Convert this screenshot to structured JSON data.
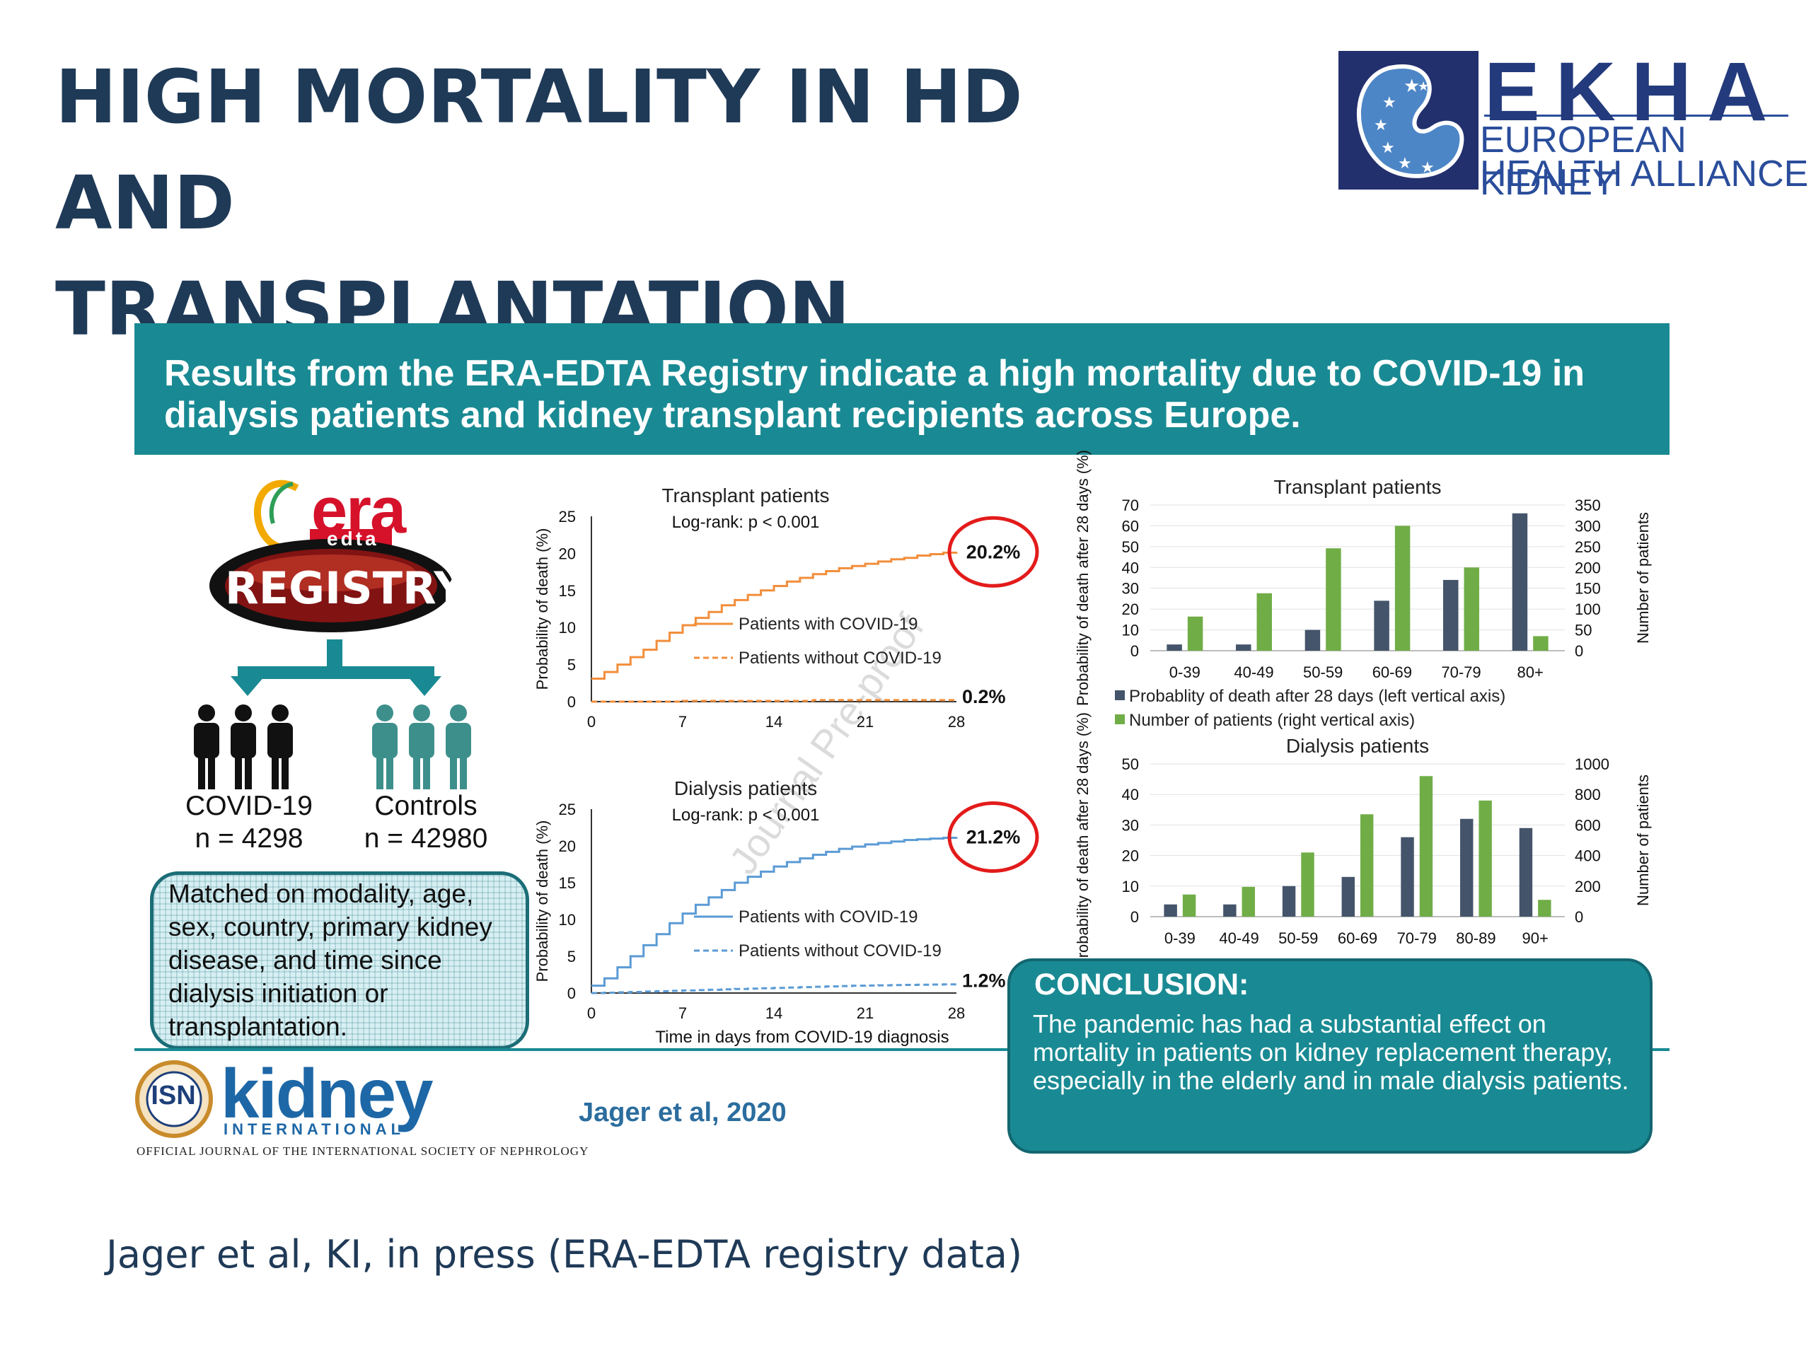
{
  "slide": {
    "title_line1": "HIGH MORTALITY IN HD AND",
    "title_line2": "TRANSPLANTATION",
    "footer": "Jager et al, KI, in press (ERA-EDTA registry data)"
  },
  "ekha_logo": {
    "word": "EKHA",
    "line1": "EUROPEAN KIDNEY",
    "line2": "HEALTH ALLIANCE"
  },
  "banner": {
    "text": "Results from the ERA-EDTA Registry indicate a high mortality due to COVID-19 in dialysis patients and kidney transplant recipients across Europe."
  },
  "registry": {
    "era": "era",
    "edta": "edta",
    "registry": "REGISTRY",
    "covid_label": "COVID-19",
    "covid_n": "n = 4298",
    "controls_label": "Controls",
    "controls_n": "n = 42980",
    "matched_text": "Matched on modality, age, sex, country, primary kidney disease, and time since dialysis initiation or transplantation."
  },
  "conclusion": {
    "heading": "CONCLUSION:",
    "text": "The pandemic has had a substantial effect on mortality in patients on kidney replacement therapy, especially in the elderly and in male dialysis patients."
  },
  "journal": {
    "isn": "ISN",
    "kidney": "kidney",
    "international": "INTERNATIONAL",
    "official": "OFFICIAL JOURNAL OF THE INTERNATIONAL SOCIETY OF NEPHROLOGY",
    "reference": "Jager et al, 2020"
  },
  "watermark": "Journal Pre-proof",
  "colors": {
    "title": "#1f3a57",
    "teal": "#198a93",
    "ekha_blue": "#233a7c",
    "covid_transplant": "#f28e3b",
    "covid_dialysis": "#5b9bd5",
    "bar_probability": "#44546a",
    "bar_patients": "#70ad47",
    "highlight_circle": "#e31b1b"
  },
  "chart_data": [
    {
      "type": "line",
      "title": "Transplant patients",
      "subtitle": "Log-rank: p < 0.001",
      "xlabel": "",
      "ylabel": "Probability of death (%)",
      "xlim": [
        0,
        28
      ],
      "ylim": [
        0,
        25
      ],
      "x_ticks": [
        "0",
        "7",
        "14",
        "21",
        "28"
      ],
      "y_ticks": [
        "0",
        "5",
        "10",
        "15",
        "20",
        "25"
      ],
      "x": [
        0,
        1,
        2,
        3,
        4,
        5,
        6,
        7,
        8,
        9,
        10,
        11,
        12,
        13,
        14,
        15,
        16,
        17,
        18,
        19,
        20,
        21,
        22,
        23,
        24,
        25,
        26,
        27,
        28
      ],
      "series": [
        {
          "name": "Patients with COVID-19",
          "style": "solid",
          "values": [
            3.1,
            4.0,
            5.0,
            6.0,
            7.0,
            8.2,
            9.3,
            10.3,
            11.3,
            12.1,
            13.0,
            13.7,
            14.4,
            15.0,
            15.6,
            16.2,
            16.7,
            17.2,
            17.6,
            18.0,
            18.3,
            18.6,
            18.9,
            19.2,
            19.4,
            19.7,
            19.9,
            20.1,
            20.2
          ]
        },
        {
          "name": "Patients without COVID-19",
          "style": "dashed",
          "values": [
            0.0,
            0.0,
            0.0,
            0.0,
            0.0,
            0.0,
            0.0,
            0.1,
            0.1,
            0.1,
            0.1,
            0.1,
            0.1,
            0.1,
            0.1,
            0.1,
            0.1,
            0.2,
            0.2,
            0.2,
            0.2,
            0.2,
            0.2,
            0.2,
            0.2,
            0.2,
            0.2,
            0.2,
            0.2
          ]
        }
      ],
      "annotations": {
        "with_covid": "20.2%",
        "without_covid": "0.2%"
      }
    },
    {
      "type": "line",
      "title": "Dialysis patients",
      "subtitle": "Log-rank: p < 0.001",
      "xlabel": "Time in days from COVID-19 diagnosis",
      "ylabel": "Probability of death (%)",
      "xlim": [
        0,
        28
      ],
      "ylim": [
        0,
        25
      ],
      "x_ticks": [
        "0",
        "7",
        "14",
        "21",
        "28"
      ],
      "y_ticks": [
        "0",
        "5",
        "10",
        "15",
        "20",
        "25"
      ],
      "x": [
        0,
        1,
        2,
        3,
        4,
        5,
        6,
        7,
        8,
        9,
        10,
        11,
        12,
        13,
        14,
        15,
        16,
        17,
        18,
        19,
        20,
        21,
        22,
        23,
        24,
        25,
        26,
        27,
        28
      ],
      "series": [
        {
          "name": "Patients with COVID-19",
          "style": "solid",
          "values": [
            1.0,
            2.0,
            3.5,
            5.0,
            6.5,
            8.0,
            9.5,
            10.8,
            12.0,
            13.0,
            14.0,
            15.0,
            15.8,
            16.5,
            17.2,
            17.8,
            18.3,
            18.8,
            19.2,
            19.6,
            19.9,
            20.2,
            20.4,
            20.6,
            20.8,
            20.9,
            21.0,
            21.1,
            21.2
          ]
        },
        {
          "name": "Patients without COVID-19",
          "style": "dashed",
          "values": [
            0.0,
            0.05,
            0.1,
            0.15,
            0.2,
            0.25,
            0.3,
            0.35,
            0.4,
            0.45,
            0.5,
            0.55,
            0.6,
            0.65,
            0.7,
            0.75,
            0.8,
            0.85,
            0.9,
            0.95,
            1.0,
            1.02,
            1.05,
            1.08,
            1.1,
            1.13,
            1.15,
            1.18,
            1.2
          ]
        }
      ],
      "annotations": {
        "with_covid": "21.2%",
        "without_covid": "1.2%"
      }
    },
    {
      "type": "bar",
      "title": "Transplant patients",
      "categories": [
        "0-39",
        "40-49",
        "50-59",
        "60-69",
        "70-79",
        "80+"
      ],
      "ylabel": "Probability of death after 28 days (%)",
      "y2label": "Number of patients",
      "ylim": [
        0,
        70
      ],
      "y2lim": [
        0,
        350
      ],
      "y_ticks": [
        "0",
        "10",
        "20",
        "30",
        "40",
        "50",
        "60",
        "70"
      ],
      "y2_ticks": [
        "0",
        "50",
        "100",
        "150",
        "200",
        "250",
        "300",
        "350"
      ],
      "series": [
        {
          "name": "Probablity of death after 28 days (left vertical axis)",
          "axis": "left",
          "values": [
            3,
            3,
            10,
            24,
            34,
            66
          ]
        },
        {
          "name": "Number of patients (right vertical axis)",
          "axis": "right",
          "values": [
            82,
            138,
            246,
            300,
            200,
            35
          ]
        }
      ],
      "legend_position": "bottom"
    },
    {
      "type": "bar",
      "title": "Dialysis patients",
      "categories": [
        "0-39",
        "40-49",
        "50-59",
        "60-69",
        "70-79",
        "80-89",
        "90+"
      ],
      "ylabel": "Probability of death after 28 days (%)",
      "y2label": "Number of patients",
      "ylim": [
        0,
        50
      ],
      "y2lim": [
        0,
        1000
      ],
      "y_ticks": [
        "0",
        "10",
        "20",
        "30",
        "40",
        "50"
      ],
      "y2_ticks": [
        "0",
        "200",
        "400",
        "600",
        "800",
        "1000"
      ],
      "series": [
        {
          "name": "Probablity of death after 28 days (left vertical axis)",
          "axis": "left",
          "values": [
            4,
            4,
            10,
            13,
            26,
            32,
            29
          ]
        },
        {
          "name": "Number of patients (right vertical axis)",
          "axis": "right",
          "values": [
            145,
            195,
            420,
            670,
            920,
            760,
            110
          ]
        }
      ]
    }
  ]
}
